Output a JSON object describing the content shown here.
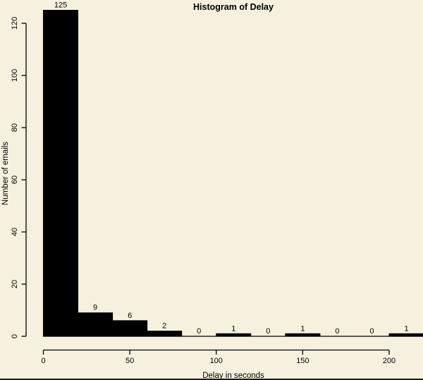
{
  "window": {
    "background": "#F5F1DE",
    "bottom_edge_color": "#1A1A1A"
  },
  "chart_data": {
    "type": "bar",
    "subtype": "histogram",
    "title": "Histogram of Delay",
    "xlabel": "Delay in seconds",
    "ylabel": "Number of emails",
    "bin_width": 20,
    "bin_edges": [
      0,
      20,
      40,
      60,
      80,
      100,
      120,
      140,
      160,
      180,
      200,
      220
    ],
    "values": [
      125,
      9,
      6,
      2,
      0,
      1,
      0,
      1,
      0,
      0,
      1
    ],
    "x_ticks": [
      0,
      50,
      100,
      150,
      200
    ],
    "y_ticks": [
      0,
      20,
      40,
      60,
      80,
      100,
      120
    ],
    "xlim": [
      0,
      220
    ],
    "ylim": [
      0,
      125
    ],
    "bar_color": "#000000",
    "axis_color": "#000000",
    "text_color": "#000000",
    "grid": false,
    "legend_position": "none"
  }
}
